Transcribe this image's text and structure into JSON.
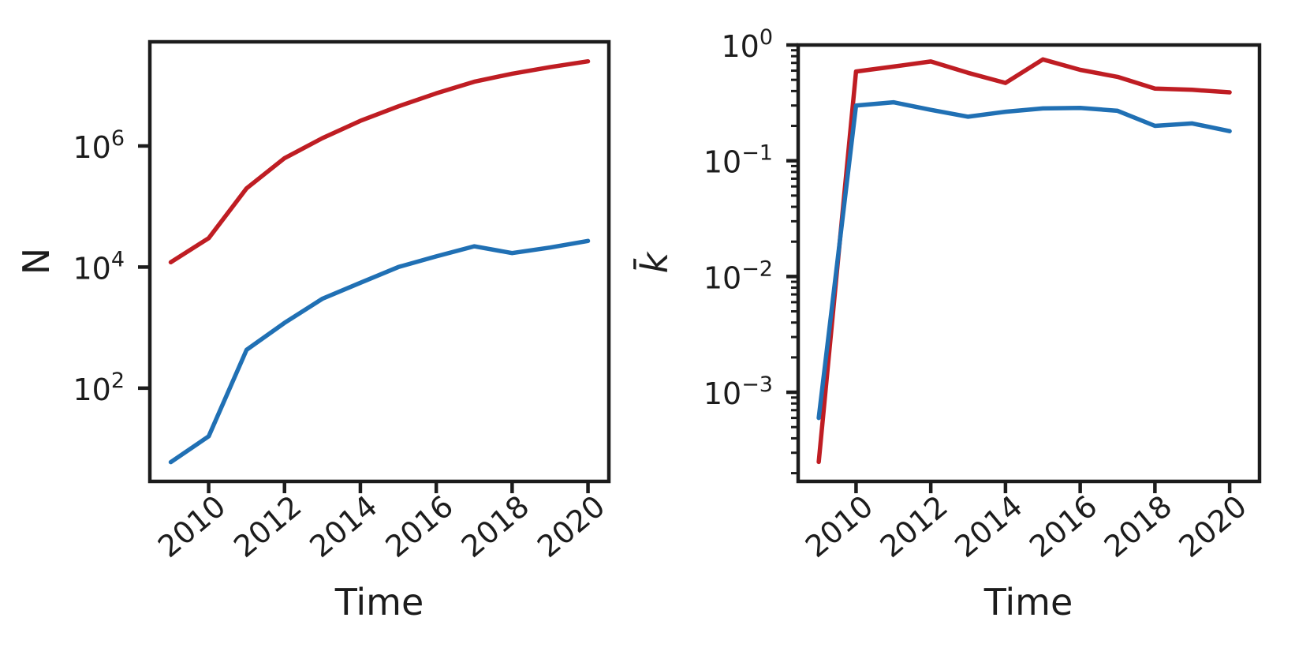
{
  "figure": {
    "background": "#ffffff",
    "axis_color": "#1c1c1c",
    "text_color": "#1c1c1c",
    "red_color": "#bf1d23",
    "blue_color": "#2070b4"
  },
  "chart_data": [
    {
      "type": "line",
      "panel": "left",
      "title": "",
      "xlabel": "Time",
      "ylabel": "N",
      "yscale": "log",
      "grid": false,
      "legend": "none",
      "xlim": [
        2008.45,
        2020.55
      ],
      "ylim_log10": [
        0.46,
        7.72
      ],
      "xticks": [
        2010,
        2012,
        2014,
        2016,
        2018,
        2020
      ],
      "xtick_labels": [
        "2010",
        "2012",
        "2014",
        "2016",
        "2018",
        "2020"
      ],
      "yticks": [
        {
          "exp": 6,
          "label": "10^6"
        },
        {
          "exp": 4,
          "label": "10^4"
        },
        {
          "exp": 2,
          "label": "10^2"
        }
      ],
      "minor_ticks": false,
      "x": [
        2009,
        2010,
        2011,
        2012,
        2013,
        2014,
        2015,
        2016,
        2017,
        2018,
        2019,
        2020
      ],
      "series": [
        {
          "name": "red-series",
          "color": "#bf1d23",
          "values": [
            12000,
            30000,
            200000,
            630000,
            1350000,
            2600000,
            4500000,
            7400000,
            11500000,
            15600000,
            20000000,
            25000000
          ]
        },
        {
          "name": "blue-series",
          "color": "#2070b4",
          "values": [
            6,
            16,
            430,
            1200,
            3000,
            5500,
            10000,
            15000,
            22000,
            17000,
            21000,
            27000
          ]
        }
      ]
    },
    {
      "type": "line",
      "panel": "right",
      "title": "",
      "xlabel": "Time",
      "ylabel": "k̄",
      "yscale": "log",
      "grid": false,
      "legend": "none",
      "xlim": [
        2008.45,
        2020.8
      ],
      "ylim_log10": [
        -3.77,
        0
      ],
      "xticks": [
        2010,
        2012,
        2014,
        2016,
        2018,
        2020
      ],
      "xtick_labels": [
        "2010",
        "2012",
        "2014",
        "2016",
        "2018",
        "2020"
      ],
      "yticks": [
        {
          "exp": 0,
          "label": "10^0"
        },
        {
          "exp": -1,
          "label": "10^-1"
        },
        {
          "exp": -2,
          "label": "10^-2"
        },
        {
          "exp": -3,
          "label": "10^-3"
        }
      ],
      "minor_ticks": true,
      "x": [
        2009,
        2010,
        2011,
        2012,
        2013,
        2014,
        2015,
        2016,
        2017,
        2018,
        2019,
        2020
      ],
      "series": [
        {
          "name": "red-series",
          "color": "#bf1d23",
          "values": [
            0.00025,
            0.59,
            0.65,
            0.72,
            0.575,
            0.47,
            0.75,
            0.61,
            0.53,
            0.42,
            0.41,
            0.39
          ]
        },
        {
          "name": "blue-series",
          "color": "#2070b4",
          "values": [
            0.0006,
            0.3,
            0.32,
            0.275,
            0.24,
            0.265,
            0.283,
            0.286,
            0.27,
            0.2,
            0.21,
            0.18
          ]
        }
      ]
    }
  ]
}
